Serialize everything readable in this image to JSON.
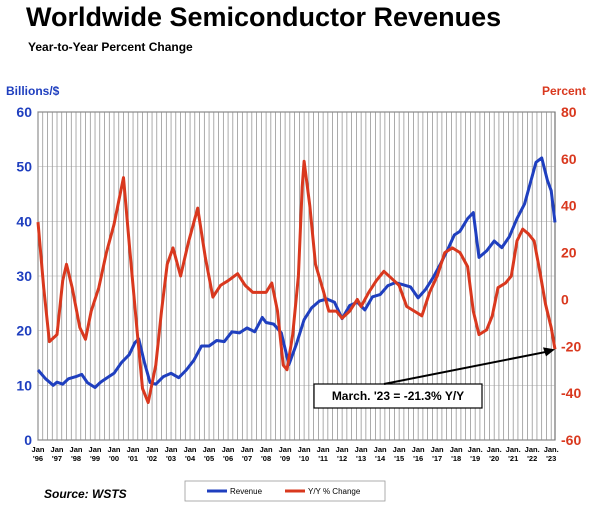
{
  "header": {
    "title": "Worldwide Semiconductor Revenues",
    "subtitle": "Year-to-Year Percent Change",
    "left_axis_label": "Billions/$",
    "right_axis_label": "Percent",
    "source": "Source: WSTS"
  },
  "colors": {
    "revenue": "#1f3fbf",
    "yoy": "#d9381e",
    "grid": "#888888"
  },
  "chart_data": {
    "type": "line",
    "title": "Worldwide Semiconductor Revenues",
    "subtitle": "Year-to-Year Percent Change",
    "ylabel": "Billions/$",
    "y2label": "Percent",
    "ylim": [
      0,
      60
    ],
    "y2lim": [
      -60,
      80
    ],
    "yticks": [
      0,
      10,
      20,
      30,
      40,
      50,
      60
    ],
    "y2ticks": [
      -60,
      -40,
      -20,
      0,
      20,
      40,
      60,
      80
    ],
    "xlim": [
      1996.0,
      2023.2
    ],
    "xticks": [
      {
        "top": "Jan",
        "bottom": "'96"
      },
      {
        "top": "Jan",
        "bottom": "'97"
      },
      {
        "top": "Jan",
        "bottom": "'98"
      },
      {
        "top": "Jan",
        "bottom": "'99"
      },
      {
        "top": "Jan",
        "bottom": "'00"
      },
      {
        "top": "Jan",
        "bottom": "'01"
      },
      {
        "top": "Jan",
        "bottom": "'02"
      },
      {
        "top": "Jan",
        "bottom": "'03"
      },
      {
        "top": "Jan",
        "bottom": "'04"
      },
      {
        "top": "Jan",
        "bottom": "'05"
      },
      {
        "top": "Jan",
        "bottom": "'06"
      },
      {
        "top": "Jan",
        "bottom": "'07"
      },
      {
        "top": "Jan",
        "bottom": "'08"
      },
      {
        "top": "Jan",
        "bottom": "'09"
      },
      {
        "top": "Jan",
        "bottom": "'10"
      },
      {
        "top": "Jan",
        "bottom": "'11"
      },
      {
        "top": "Jan",
        "bottom": "'12"
      },
      {
        "top": "Jan",
        "bottom": "'13"
      },
      {
        "top": "Jan",
        "bottom": "'14"
      },
      {
        "top": "Jan",
        "bottom": "'15"
      },
      {
        "top": "Jan",
        "bottom": "'16"
      },
      {
        "top": "Jan",
        "bottom": "'17"
      },
      {
        "top": "Jan",
        "bottom": "'18"
      },
      {
        "top": "Jan.",
        "bottom": "'19"
      },
      {
        "top": "Jan.",
        "bottom": "'20"
      },
      {
        "top": "Jan.",
        "bottom": "'21"
      },
      {
        "top": "Jan.",
        "bottom": "'22"
      },
      {
        "top": "Jan.",
        "bottom": "'23"
      }
    ],
    "grid": true,
    "legend": "bottom-center",
    "annotation": {
      "text": "March. '23 = -21.3% Y/Y",
      "x": 2023.2,
      "y": -21.3,
      "axis": "right"
    },
    "series": [
      {
        "name": "Revenue",
        "axis": "left",
        "points": [
          [
            1996.0,
            12.8
          ],
          [
            1996.4,
            11.2
          ],
          [
            1996.8,
            10.0
          ],
          [
            1997.0,
            10.6
          ],
          [
            1997.3,
            10.2
          ],
          [
            1997.6,
            11.2
          ],
          [
            1998.0,
            11.6
          ],
          [
            1998.3,
            12.0
          ],
          [
            1998.6,
            10.5
          ],
          [
            1999.0,
            9.6
          ],
          [
            1999.3,
            10.6
          ],
          [
            1999.6,
            11.3
          ],
          [
            2000.0,
            12.2
          ],
          [
            2000.4,
            14.2
          ],
          [
            2000.8,
            15.6
          ],
          [
            2001.1,
            17.8
          ],
          [
            2001.3,
            18.5
          ],
          [
            2001.6,
            14.2
          ],
          [
            2001.9,
            10.5
          ],
          [
            2002.2,
            10.2
          ],
          [
            2002.6,
            11.6
          ],
          [
            2003.0,
            12.2
          ],
          [
            2003.4,
            11.4
          ],
          [
            2003.8,
            12.8
          ],
          [
            2004.2,
            14.6
          ],
          [
            2004.6,
            17.2
          ],
          [
            2005.0,
            17.2
          ],
          [
            2005.4,
            18.2
          ],
          [
            2005.8,
            18.0
          ],
          [
            2006.2,
            19.8
          ],
          [
            2006.6,
            19.6
          ],
          [
            2007.0,
            20.5
          ],
          [
            2007.4,
            19.8
          ],
          [
            2007.8,
            22.4
          ],
          [
            2008.0,
            21.5
          ],
          [
            2008.4,
            21.2
          ],
          [
            2008.8,
            19.6
          ],
          [
            2009.2,
            13.8
          ],
          [
            2009.6,
            17.6
          ],
          [
            2010.0,
            22.0
          ],
          [
            2010.4,
            24.2
          ],
          [
            2010.8,
            25.4
          ],
          [
            2011.2,
            25.8
          ],
          [
            2011.6,
            25.2
          ],
          [
            2012.0,
            22.2
          ],
          [
            2012.4,
            24.6
          ],
          [
            2012.8,
            25.2
          ],
          [
            2013.2,
            23.8
          ],
          [
            2013.6,
            26.2
          ],
          [
            2014.0,
            26.6
          ],
          [
            2014.4,
            28.2
          ],
          [
            2014.8,
            28.8
          ],
          [
            2015.2,
            28.4
          ],
          [
            2015.6,
            28.0
          ],
          [
            2016.0,
            26.0
          ],
          [
            2016.4,
            27.6
          ],
          [
            2016.8,
            29.8
          ],
          [
            2017.2,
            32.4
          ],
          [
            2017.6,
            35.2
          ],
          [
            2017.9,
            37.5
          ],
          [
            2018.2,
            38.2
          ],
          [
            2018.6,
            40.5
          ],
          [
            2018.9,
            41.6
          ],
          [
            2019.2,
            33.4
          ],
          [
            2019.6,
            34.6
          ],
          [
            2020.0,
            36.4
          ],
          [
            2020.4,
            35.2
          ],
          [
            2020.8,
            37.2
          ],
          [
            2021.2,
            40.5
          ],
          [
            2021.6,
            43.2
          ],
          [
            2021.9,
            47.0
          ],
          [
            2022.2,
            50.8
          ],
          [
            2022.5,
            51.6
          ],
          [
            2022.8,
            47.5
          ],
          [
            2023.0,
            45.6
          ],
          [
            2023.2,
            39.8
          ]
        ]
      },
      {
        "name": "Y/Y % Change",
        "axis": "right",
        "points": [
          [
            1996.0,
            33
          ],
          [
            1996.3,
            5
          ],
          [
            1996.6,
            -18
          ],
          [
            1997.0,
            -15
          ],
          [
            1997.3,
            8
          ],
          [
            1997.5,
            15
          ],
          [
            1997.8,
            5
          ],
          [
            1998.2,
            -12
          ],
          [
            1998.5,
            -17
          ],
          [
            1998.8,
            -5
          ],
          [
            1999.2,
            5
          ],
          [
            1999.6,
            20
          ],
          [
            2000.0,
            32
          ],
          [
            2000.3,
            44
          ],
          [
            2000.5,
            52
          ],
          [
            2000.8,
            24
          ],
          [
            2001.2,
            -12
          ],
          [
            2001.5,
            -38
          ],
          [
            2001.8,
            -44
          ],
          [
            2002.2,
            -28
          ],
          [
            2002.5,
            -5
          ],
          [
            2002.8,
            15
          ],
          [
            2003.1,
            22
          ],
          [
            2003.5,
            10
          ],
          [
            2003.9,
            24
          ],
          [
            2004.2,
            33
          ],
          [
            2004.4,
            39
          ],
          [
            2004.8,
            18
          ],
          [
            2005.2,
            1
          ],
          [
            2005.6,
            6
          ],
          [
            2006.0,
            8
          ],
          [
            2006.5,
            11
          ],
          [
            2006.9,
            6
          ],
          [
            2007.3,
            3
          ],
          [
            2007.7,
            3
          ],
          [
            2008.0,
            3
          ],
          [
            2008.3,
            7
          ],
          [
            2008.6,
            -5
          ],
          [
            2008.9,
            -28
          ],
          [
            2009.1,
            -30
          ],
          [
            2009.4,
            -15
          ],
          [
            2009.7,
            10
          ],
          [
            2009.9,
            48
          ],
          [
            2010.0,
            59
          ],
          [
            2010.3,
            40
          ],
          [
            2010.6,
            15
          ],
          [
            2011.0,
            4
          ],
          [
            2011.3,
            -5
          ],
          [
            2011.7,
            -5
          ],
          [
            2012.0,
            -8
          ],
          [
            2012.4,
            -5
          ],
          [
            2012.8,
            0
          ],
          [
            2013.0,
            -3
          ],
          [
            2013.4,
            3
          ],
          [
            2013.8,
            8
          ],
          [
            2014.2,
            12
          ],
          [
            2014.6,
            9
          ],
          [
            2015.0,
            6
          ],
          [
            2015.4,
            -3
          ],
          [
            2015.8,
            -5
          ],
          [
            2016.2,
            -7
          ],
          [
            2016.6,
            3
          ],
          [
            2017.0,
            10
          ],
          [
            2017.4,
            20
          ],
          [
            2017.8,
            22
          ],
          [
            2018.2,
            20
          ],
          [
            2018.6,
            14
          ],
          [
            2018.9,
            -5
          ],
          [
            2019.2,
            -15
          ],
          [
            2019.6,
            -13
          ],
          [
            2019.9,
            -7
          ],
          [
            2020.2,
            5
          ],
          [
            2020.6,
            7
          ],
          [
            2020.9,
            10
          ],
          [
            2021.2,
            25
          ],
          [
            2021.5,
            30
          ],
          [
            2021.8,
            28
          ],
          [
            2022.1,
            25
          ],
          [
            2022.4,
            12
          ],
          [
            2022.7,
            -2
          ],
          [
            2023.0,
            -12
          ],
          [
            2023.2,
            -21.3
          ]
        ]
      }
    ]
  }
}
